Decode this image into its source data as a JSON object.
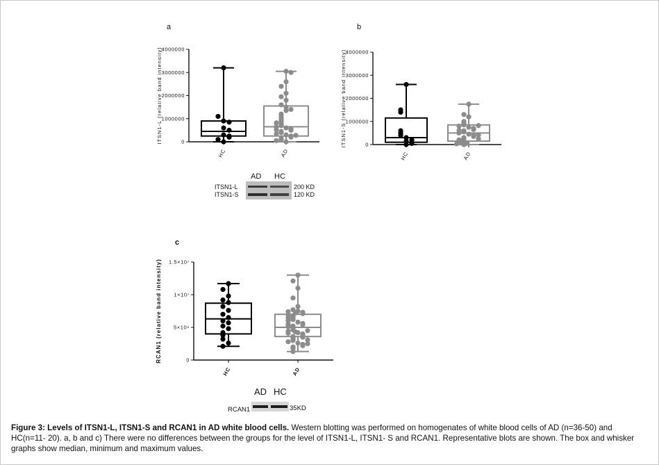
{
  "caption": {
    "bold": "Figure 3: Levels of ITSN1-L, ITSN1-S and RCAN1 in AD white blood cells.",
    "text": " Western blotting was performed on homogenates of white blood cells of AD (n=36-50) and HC(n=11- 20). a, b and c) There were no differences between the groups for the level of ITSN1-L, ITSN1- S and RCAN1. Representative blots are shown. The box and whisker graphs show median, minimum and maximum values."
  },
  "blot_ab": {
    "lanes": [
      "AD",
      "HC"
    ],
    "rows": [
      {
        "label": "ITSN1-L",
        "size": "200 KD"
      },
      {
        "label": "ITSN1-S",
        "size": "120 KD"
      }
    ]
  },
  "blot_c": {
    "lanes": [
      "AD",
      "HC"
    ],
    "rows": [
      {
        "label": "RCAN1",
        "size": "35KD"
      }
    ]
  },
  "colors": {
    "HC": "#000000",
    "AD": "#8c8c8c"
  },
  "chart_data": [
    {
      "type": "box",
      "panel": "a",
      "ylabel": "ITSN1-L (relative band intensity)",
      "ylim": [
        0,
        4000000
      ],
      "yticks": [
        "0",
        "1000000",
        "2000000",
        "3000000",
        "4000000"
      ],
      "categories": [
        "HC",
        "AD"
      ],
      "boxes": [
        {
          "name": "HC",
          "min": 0,
          "q1": 250000,
          "median": 450000,
          "q3": 900000,
          "max": 3200000,
          "points": [
            3200000,
            1100000,
            900000,
            850000,
            600000,
            500000,
            300000,
            250000,
            200000,
            100000,
            0
          ]
        },
        {
          "name": "AD",
          "min": 0,
          "q1": 250000,
          "median": 650000,
          "q3": 1550000,
          "max": 3050000,
          "points": [
            3050000,
            3000000,
            2600000,
            2400000,
            2100000,
            1950000,
            1800000,
            1600000,
            1500000,
            1400000,
            1350000,
            1200000,
            1100000,
            1000000,
            950000,
            900000,
            800000,
            750000,
            700000,
            650000,
            600000,
            550000,
            500000,
            450000,
            400000,
            350000,
            300000,
            250000,
            200000,
            150000,
            100000,
            50000,
            0,
            280000,
            520000,
            820000
          ]
        }
      ]
    },
    {
      "type": "box",
      "panel": "b",
      "ylabel": "ITSN1-S (relative band intensity)",
      "ylim": [
        0,
        4000000
      ],
      "yticks": [
        "0",
        "1000000",
        "2000000",
        "3000000",
        "4000000"
      ],
      "categories": [
        "HC",
        "AD"
      ],
      "boxes": [
        {
          "name": "HC",
          "min": 0,
          "q1": 100000,
          "median": 300000,
          "q3": 1150000,
          "max": 2600000,
          "points": [
            2600000,
            1500000,
            1400000,
            600000,
            500000,
            400000,
            300000,
            200000,
            150000,
            50000,
            0
          ]
        },
        {
          "name": "AD",
          "min": 0,
          "q1": 150000,
          "median": 500000,
          "q3": 850000,
          "max": 1750000,
          "points": [
            1750000,
            1300000,
            1200000,
            1000000,
            950000,
            900000,
            850000,
            800000,
            750000,
            700000,
            650000,
            600000,
            550000,
            500000,
            450000,
            400000,
            350000,
            300000,
            250000,
            200000,
            200000,
            150000,
            150000,
            100000,
            100000,
            50000,
            50000,
            0,
            0,
            820000,
            620000,
            420000,
            250000,
            120000,
            80000,
            30000
          ]
        }
      ]
    },
    {
      "type": "box",
      "panel": "c",
      "ylabel": "RCAN1 (relative band intensity)",
      "ylim": [
        0,
        15000000
      ],
      "yticks": [
        "0",
        "5×10⁶",
        "1×10⁷",
        "1.5×10⁷"
      ],
      "categories": [
        "HC",
        "AD"
      ],
      "boxes": [
        {
          "name": "HC",
          "min": 2100000,
          "q1": 4000000,
          "median": 6300000,
          "q3": 8700000,
          "max": 11700000,
          "points": [
            11700000,
            10800000,
            9800000,
            9200000,
            8800000,
            8200000,
            7600000,
            7000000,
            6500000,
            6000000,
            5700000,
            5200000,
            4800000,
            4200000,
            3800000,
            3200000,
            2600000,
            2100000
          ]
        },
        {
          "name": "AD",
          "min": 1300000,
          "q1": 3600000,
          "median": 5000000,
          "q3": 7000000,
          "max": 13000000,
          "points": [
            13000000,
            12100000,
            11000000,
            9500000,
            8200000,
            7700000,
            7500000,
            7300000,
            7100000,
            6800000,
            6600000,
            6400000,
            6200000,
            6000000,
            5800000,
            5600000,
            5400000,
            5200000,
            5000000,
            4800000,
            4600000,
            4400000,
            4200000,
            4000000,
            3800000,
            3600000,
            3400000,
            3200000,
            3000000,
            2800000,
            2600000,
            2400000,
            2200000,
            2000000,
            1800000,
            1300000,
            7400000,
            6500000,
            5500000,
            4500000,
            3500000,
            2500000,
            6100000,
            5100000,
            4100000,
            3100000,
            5300000,
            4300000,
            6900000,
            7200000
          ]
        }
      ]
    }
  ]
}
